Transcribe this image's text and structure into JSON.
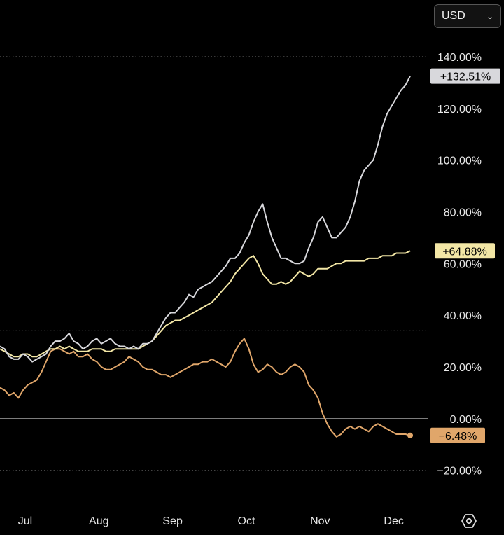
{
  "currency_selector": {
    "label": "USD",
    "icon": "chevron-down-icon"
  },
  "settings": {
    "icon": "settings-hexagon-icon"
  },
  "colors": {
    "white_series": "#d8d8dc",
    "yellow_series": "#f3e7a6",
    "orange_series": "#e0a66a",
    "background": "#000000"
  },
  "chart_data": {
    "type": "line",
    "title": "",
    "xlabel": "",
    "ylabel": "",
    "x_ticks": [
      "Jul",
      "Aug",
      "Sep",
      "Oct",
      "Nov",
      "Dec"
    ],
    "x_tick_index": [
      5,
      21,
      37,
      53,
      69,
      85
    ],
    "y_ticks": [
      "120.00%",
      "100.00%",
      "80.00%",
      "60.00%",
      "40.00%",
      "20.00%",
      "0.00%",
      "−20.00%"
    ],
    "y_tick_values": [
      120,
      100,
      80,
      60,
      40,
      20,
      0,
      -20
    ],
    "top_tick_partial": "140.00%",
    "ylim": [
      -32,
      150
    ],
    "grid": "dotted at 140%, 34% and −20%; solid baseline at 0%",
    "dotted_lines": [
      140,
      34,
      -20
    ],
    "baseline": 0,
    "series": [
      {
        "name": "white",
        "color": "#d8d8dc",
        "last_label": "+132.51%",
        "values": [
          28,
          27,
          24,
          23,
          23,
          25,
          24,
          22,
          23,
          24,
          25,
          28,
          30,
          30,
          31,
          33,
          30,
          29,
          27,
          28,
          30,
          31,
          29,
          30,
          31,
          29,
          28,
          28,
          27,
          28,
          27,
          29,
          29,
          30,
          33,
          36,
          39,
          41,
          41,
          43,
          45,
          48,
          47,
          50,
          51,
          52,
          53,
          55,
          57,
          59,
          62,
          62,
          64,
          68,
          71,
          76,
          80,
          83,
          76,
          70,
          66,
          62,
          62,
          61,
          60,
          60,
          61,
          66,
          70,
          76,
          78,
          74,
          70,
          70,
          72,
          74,
          78,
          84,
          92,
          96,
          98,
          100,
          106,
          113,
          118,
          121,
          124,
          127,
          129,
          132.51
        ]
      },
      {
        "name": "yellow",
        "color": "#f3e7a6",
        "last_label": "+64.88%",
        "values": [
          27,
          26,
          25,
          24,
          24,
          25,
          25,
          24,
          24,
          25,
          26,
          27,
          27,
          28,
          27,
          28,
          27,
          26,
          26,
          26,
          27,
          27,
          27,
          26,
          26,
          27,
          27,
          27,
          27,
          27,
          27,
          28,
          29,
          30,
          32,
          34,
          36,
          37,
          38,
          38,
          39,
          40,
          41,
          42,
          43,
          44,
          45,
          47,
          49,
          51,
          53,
          56,
          58,
          60,
          62,
          63,
          60,
          56,
          54,
          52,
          52,
          53,
          52,
          53,
          55,
          57,
          56,
          55,
          56,
          58,
          58,
          58,
          59,
          60,
          60,
          61,
          61,
          61,
          61,
          61,
          62,
          62,
          62,
          63,
          63,
          63,
          64,
          64,
          64,
          64.88
        ]
      },
      {
        "name": "orange",
        "color": "#e0a66a",
        "last_label": "−6.48%",
        "values": [
          12,
          11,
          9,
          10,
          8,
          11,
          13,
          14,
          15,
          18,
          22,
          26,
          27,
          27,
          26,
          25,
          26,
          24,
          24,
          25,
          23,
          22,
          20,
          19,
          19,
          20,
          21,
          22,
          24,
          23,
          22,
          20,
          19,
          19,
          18,
          17,
          17,
          16,
          17,
          18,
          19,
          20,
          21,
          21,
          22,
          22,
          23,
          22,
          21,
          20,
          22,
          26,
          29,
          31,
          27,
          21,
          18,
          19,
          21,
          20,
          18,
          17,
          18,
          20,
          21,
          20,
          18,
          13,
          11,
          8,
          2,
          -2,
          -5,
          -7,
          -6,
          -4,
          -3,
          -4,
          -3,
          -4,
          -5,
          -3,
          -2,
          -3,
          -4,
          -5,
          -6,
          -6,
          -6,
          -6.48
        ]
      }
    ]
  }
}
